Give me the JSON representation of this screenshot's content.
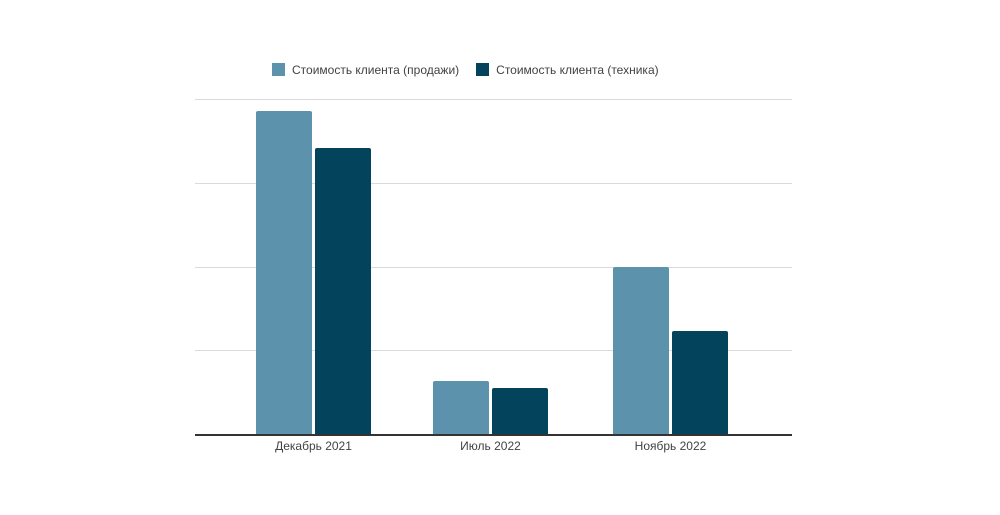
{
  "chart_data": {
    "type": "bar",
    "title": "",
    "xlabel": "",
    "ylabel": "",
    "categories": [
      "Декабрь 2021",
      "Июль 2022",
      "Ноябрь 2022"
    ],
    "series": [
      {
        "name": "Стоимость клиента (продажи)",
        "color": "#5c92ac",
        "values": [
          3.86,
          0.63,
          2.0
        ]
      },
      {
        "name": "Стоимость клиента (техника)",
        "color": "#03445c",
        "values": [
          3.42,
          0.55,
          1.23
        ]
      }
    ],
    "ylim": [
      0,
      4
    ],
    "grid_interval": 1,
    "gridlines_visible": true,
    "y_tick_labels_visible": false,
    "legend_position": "top",
    "note": "Y axis shows no tick labels; values are estimated in gridline units (1 unit = one horizontal gridline interval above the baseline)."
  }
}
